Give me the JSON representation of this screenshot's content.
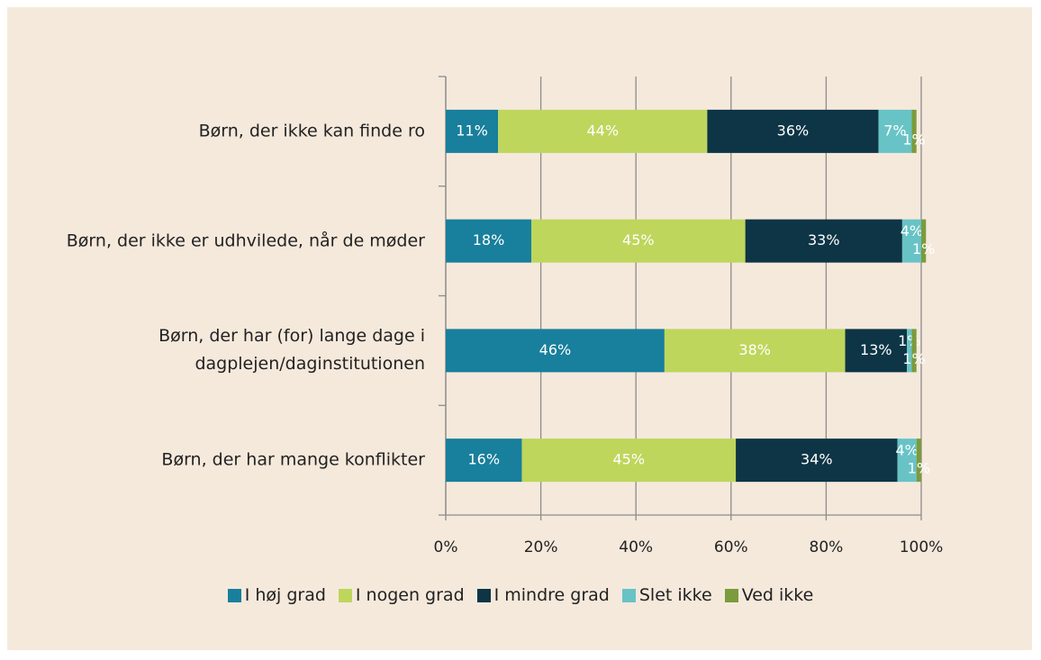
{
  "chart_data": {
    "type": "stacked_bar_horizontal",
    "categories": [
      "Børn, der ikke kan finde ro",
      "Børn, der ikke er udhvilede, når de møder",
      "Børn, der har (for) lange dage i dagplejen/daginstitutionen",
      "Børn, der har mange konflikter"
    ],
    "series": [
      {
        "name": "I høj grad",
        "color": "#187f9c",
        "values": [
          11,
          18,
          46,
          16
        ],
        "value_labels": [
          "11%",
          "18%",
          "46%",
          "16%"
        ]
      },
      {
        "name": "I nogen grad",
        "color": "#bed65c",
        "values": [
          44,
          45,
          38,
          45
        ],
        "value_labels": [
          "44%",
          "45%",
          "38%",
          "45%"
        ]
      },
      {
        "name": "I mindre grad",
        "color": "#0d3546",
        "values": [
          36,
          33,
          13,
          34
        ],
        "value_labels": [
          "36%",
          "33%",
          "13%",
          "34%"
        ]
      },
      {
        "name": "Slet ikke",
        "color": "#68c3c6",
        "values": [
          7,
          4,
          1,
          4
        ],
        "value_labels": [
          "7%",
          "4%",
          "1%",
          "4%"
        ]
      },
      {
        "name": "Ved ikke",
        "color": "#7b9b3c",
        "values": [
          1,
          1,
          1,
          1
        ],
        "value_labels": [
          "1%",
          "1%",
          "1%",
          "1%"
        ]
      }
    ],
    "xlim": [
      0,
      100
    ],
    "xticks": [
      {
        "value": 0,
        "label": "0%"
      },
      {
        "value": 20,
        "label": "20%"
      },
      {
        "value": 40,
        "label": "40%"
      },
      {
        "value": 60,
        "label": "60%"
      },
      {
        "value": 80,
        "label": "80%"
      },
      {
        "value": 100,
        "label": "100%"
      }
    ],
    "grid": true,
    "legend": "bottom"
  }
}
